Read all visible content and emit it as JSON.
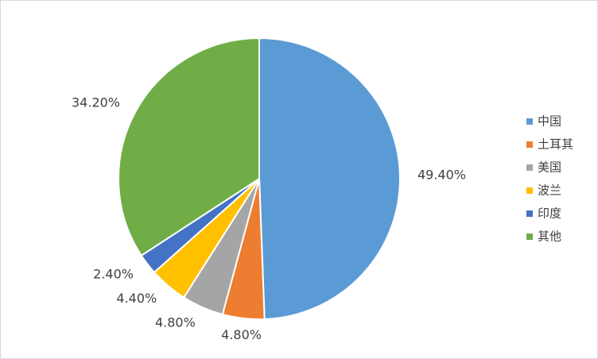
{
  "chart_data": {
    "type": "pie",
    "categories": [
      "中国",
      "土耳其",
      "美国",
      "波兰",
      "印度",
      "其他"
    ],
    "values": [
      49.4,
      4.8,
      4.8,
      4.4,
      2.4,
      34.2
    ],
    "value_labels": [
      "49.40%",
      "4.80%",
      "4.80%",
      "4.40%",
      "2.40%",
      "34.20%"
    ],
    "colors": [
      "#5b9bd5",
      "#ed7d31",
      "#a5a5a5",
      "#ffc000",
      "#4472c4",
      "#70ad47"
    ],
    "legend": "right"
  }
}
